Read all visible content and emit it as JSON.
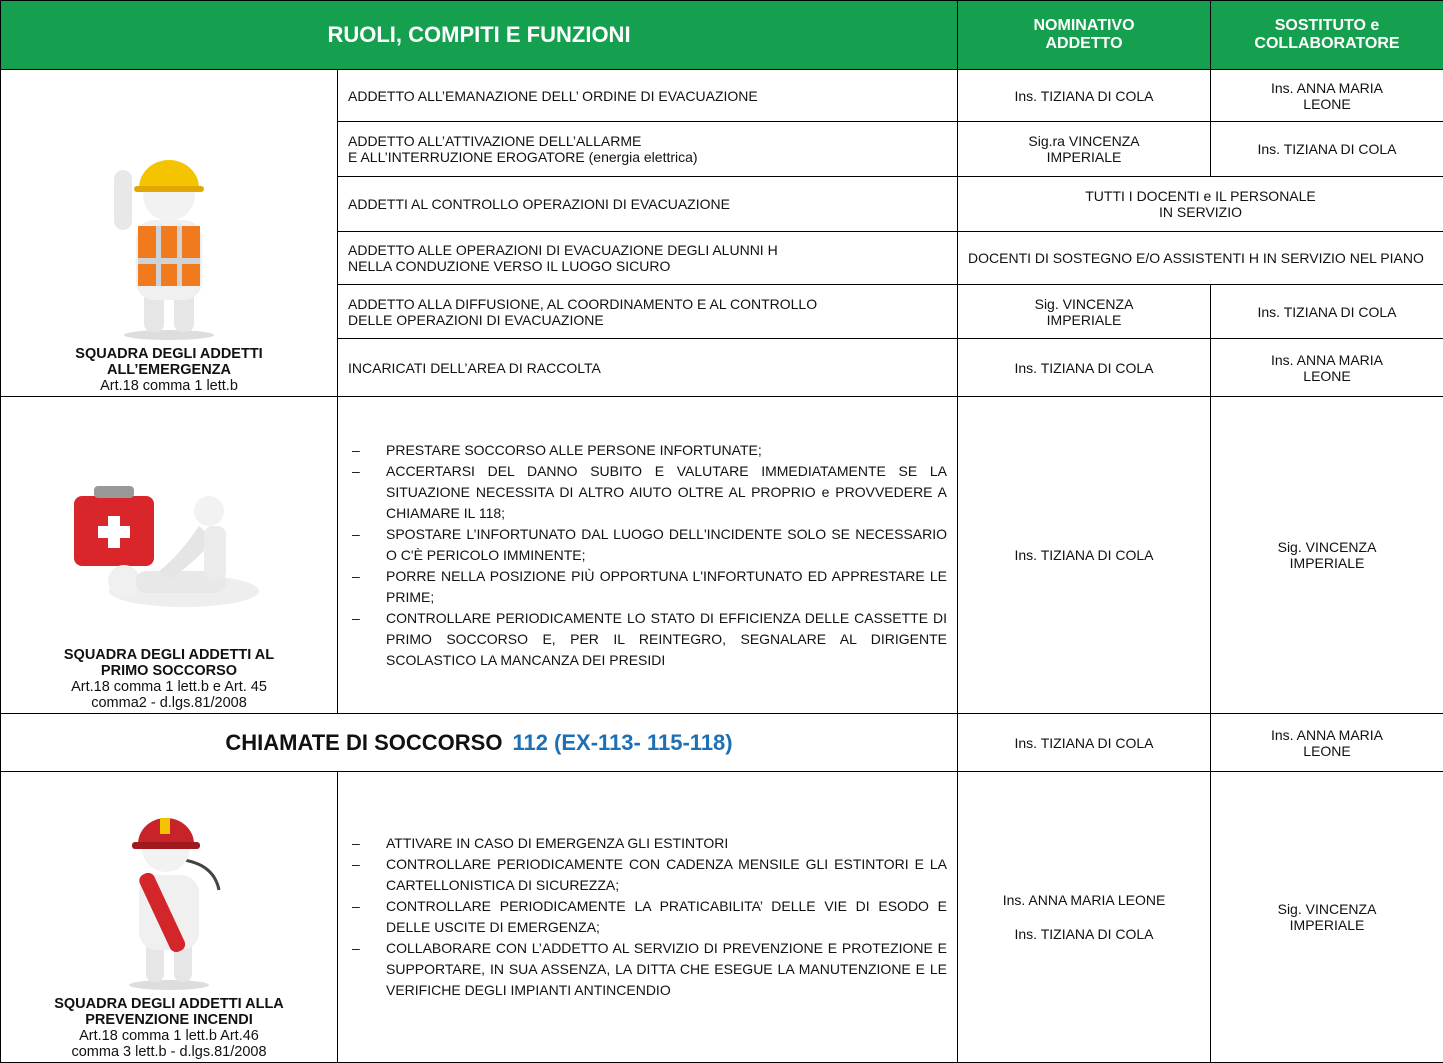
{
  "header": {
    "title": "RUOLI, COMPITI E FUNZIONI",
    "col_addetto": "NOMINATIVO\nADDETTO",
    "col_sostituto": "SOSTITUTO e\nCOLLABORATORE"
  },
  "emergency_team": {
    "team": "SQUADRA DEGLI ADDETTI\nALL’EMERGENZA",
    "reference": "Art.18 comma 1 lett.b",
    "rows": [
      {
        "task": "ADDETTO ALL’EMANAZIONE DELL’ ORDINE DI EVACUAZIONE",
        "addetto": "Ins.  TIZIANA DI COLA",
        "sostituto": "Ins. ANNA MARIA\nLEONE"
      },
      {
        "task": "ADDETTO ALL’ATTIVAZIONE DELL’ALLARME\nE ALL’INTERRUZIONE  EROGATORE (energia elettrica)",
        "addetto": "Sig.ra  VINCENZA\nIMPERIALE",
        "sostituto": "Ins. TIZIANA DI COLA"
      },
      {
        "task": "ADDETTI AL CONTROLLO OPERAZIONI DI EVACUAZIONE",
        "shared": "TUTTI I DOCENTI e IL PERSONALE\nIN SERVIZIO"
      },
      {
        "task": "ADDETTO ALLE OPERAZIONI DI EVACUAZIONE DEGLI ALUNNI H\nNELLA CONDUZIONE VERSO IL LUOGO SICURO",
        "shared": "DOCENTI DI SOSTEGNO E/O ASSISTENTI H IN SERVIZIO NEL PIANO"
      },
      {
        "task": "ADDETTO ALLA DIFFUSIONE, AL COORDINAMENTO E AL CONTROLLO\nDELLE OPERAZIONI DI EVACUAZIONE",
        "addetto": "Sig.  VINCENZA\nIMPERIALE",
        "sostituto": "Ins. TIZIANA DI COLA"
      },
      {
        "task": "INCARICATI DELL’AREA DI RACCOLTA",
        "addetto": "Ins. TIZIANA DI COLA",
        "sostituto": "Ins. ANNA MARIA\nLEONE"
      }
    ]
  },
  "first_aid_team": {
    "team": "SQUADRA DEGLI ADDETTI AL\nPRIMO SOCCORSO",
    "reference": "Art.18 comma 1 lett.b e Art. 45\ncomma2 - d.lgs.81/2008",
    "tasks": [
      "PRESTARE  SOCCORSO ALLE PERSONE INFORTUNATE;",
      "ACCERTARSI DEL DANNO SUBITO E VALUTARE IMMEDIATAMENTE SE LA SITUAZIONE NECESSITA DI ALTRO AIUTO OLTRE AL PROPRIO e PROVVEDERE A CHIAMARE IL 118;",
      "SPOSTARE L’INFORTUNATO DAL LUOGO DELL'INCIDENTE SOLO SE NECESSARIO O C'È PERICOLO IMMINENTE;",
      "PORRE NELLA POSIZIONE PIÙ OPPORTUNA L'INFORTUNATO ED APPRESTARE LE PRIME;",
      "CONTROLLARE PERIODICAMENTE LO STATO DI EFFICIENZA DELLE CASSETTE DI PRIMO SOCCORSO E,  PER IL REINTEGRO, SEGNALARE AL DIRIGENTE SCOLASTICO  LA MANCANZA DEI PRESIDI"
    ],
    "addetto": "Ins.  TIZIANA DI COLA",
    "sostituto": "Sig.  VINCENZA\nIMPERIALE"
  },
  "emergency_calls": {
    "label": "CHIAMATE DI SOCCORSO",
    "numbers": "112 (EX-113- 115-118)",
    "addetto": "Ins.  TIZIANA DI COLA",
    "sostituto": "Ins. ANNA MARIA\nLEONE"
  },
  "fire_team": {
    "team": "SQUADRA DEGLI ADDETTI ALLA\nPREVENZIONE INCENDI",
    "reference": "Art.18 comma 1 lett.b Art.46\ncomma 3 lett.b - d.lgs.81/2008",
    "tasks": [
      "ATTIVARE IN CASO DI EMERGENZA GLI ESTINTORI",
      "CONTROLLARE PERIODICAMENTE CON CADENZA MENSILE GLI ESTINTORI  E LA CARTELLONISTICA DI SICUREZZA;",
      "CONTROLLARE PERIODICAMENTE LA PRATICABILITA’ DELLE VIE DI ESODO E DELLE USCITE DI EMERGENZA;",
      "COLLABORARE CON L’ADDETTO AL SERVIZIO DI PREVENZIONE E PROTEZIONE E SUPPORTARE, IN SUA ASSENZA, LA DITTA CHE ESEGUE LA MANUTENZIONE E LE VERIFICHE DEGLI IMPIANTI ANTINCENDIO"
    ],
    "addetto": [
      "Ins. ANNA MARIA LEONE",
      "Ins.  TIZIANA DI COLA"
    ],
    "sostituto": "Sig.  VINCENZA\nIMPERIALE"
  }
}
